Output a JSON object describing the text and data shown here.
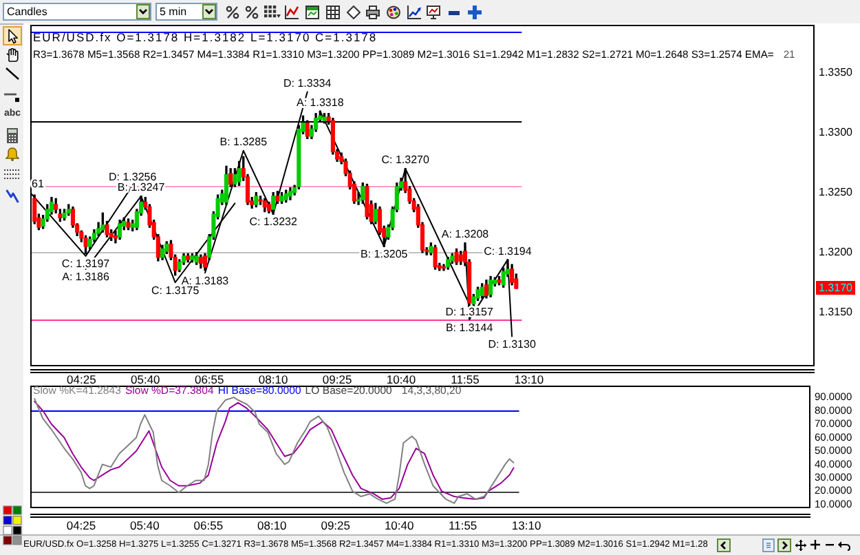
{
  "chart_data": [
    {
      "type": "candlestick",
      "title": "EUR/USD.fx O=1.3178 H=1.3182 L=1.3170 C=1.3178",
      "subtitle": "R3=1.3678 M5=1.3568 R2=1.3457 M4=1.3384 R1=1.3310 M3=1.3200 PP=1.3089 M2=1.3016 S1=1.2942 M1=1.2832 S2=1.2721 M0=1.2648 S3=1.2574 EMA=",
      "x": [
        3.5,
        3.5833,
        3.6667,
        3.75,
        3.8333,
        3.9167,
        4,
        4.0833,
        4.1667,
        4.25,
        4.3333,
        4.4167,
        4.5,
        4.5833,
        4.6667,
        4.75,
        4.8333,
        4.9167,
        5,
        5.0833,
        5.1667,
        5.25,
        5.3333,
        5.4167,
        5.5,
        5.5833,
        5.6667,
        5.75,
        5.8333,
        5.9167,
        6,
        6.0833,
        6.1667,
        6.25,
        6.3333,
        6.4167,
        6.5,
        6.5833,
        6.6667,
        6.75,
        6.8333,
        6.9167,
        7,
        7.0833,
        7.1667,
        7.25,
        7.3333,
        7.4167,
        7.5,
        7.5833,
        7.6667,
        7.75,
        7.8333,
        7.9167,
        8,
        8.0833,
        8.1667,
        8.25,
        8.3333,
        8.4167,
        8.5,
        8.5833,
        8.6667,
        8.75,
        8.8333,
        8.9167,
        9,
        9.0833,
        9.1667,
        9.25,
        9.3333,
        9.4167,
        9.5,
        9.5833,
        9.6667,
        9.75,
        9.8333,
        9.9167,
        10,
        10.0833,
        10.1667,
        10.25,
        10.3333,
        10.4167,
        10.5,
        10.5833,
        10.6667,
        10.75,
        10.8333,
        10.9167,
        11,
        11.0833,
        11.1667,
        11.25,
        11.3333,
        11.4167,
        11.5,
        11.5833,
        11.6667,
        11.75,
        11.8333,
        11.9167,
        12,
        12.0833,
        12.1667,
        12.25,
        12.3333,
        12.4167,
        12.5,
        12.5833,
        12.6667,
        12.75,
        12.8333,
        12.9167
      ],
      "ohlc": [
        [
          1.3245,
          1.3248,
          1.3224,
          1.3226
        ],
        [
          1.3229,
          1.3232,
          1.3219,
          1.3221
        ],
        [
          1.3222,
          1.3231,
          1.322,
          1.3228
        ],
        [
          1.3228,
          1.324,
          1.3226,
          1.3236
        ],
        [
          1.3234,
          1.3246,
          1.3232,
          1.3242
        ],
        [
          1.324,
          1.3245,
          1.3233,
          1.3236
        ],
        [
          1.3232,
          1.3236,
          1.3226,
          1.3229
        ],
        [
          1.3229,
          1.3236,
          1.3227,
          1.3233
        ],
        [
          1.3233,
          1.324,
          1.3231,
          1.3236
        ],
        [
          1.3236,
          1.3238,
          1.3221,
          1.3223
        ],
        [
          1.3223,
          1.3224,
          1.3214,
          1.3217
        ],
        [
          1.3217,
          1.3218,
          1.3209,
          1.3212
        ],
        [
          1.3212,
          1.3214,
          1.3199,
          1.3205
        ],
        [
          1.3205,
          1.3213,
          1.3203,
          1.3211
        ],
        [
          1.3211,
          1.3219,
          1.3209,
          1.3216
        ],
        [
          1.3216,
          1.3225,
          1.3214,
          1.322
        ],
        [
          1.3219,
          1.3233,
          1.3217,
          1.3223
        ],
        [
          1.3223,
          1.3226,
          1.3213,
          1.3215
        ],
        [
          1.3216,
          1.3219,
          1.321,
          1.3213
        ],
        [
          1.3214,
          1.3218,
          1.3208,
          1.3212
        ],
        [
          1.3213,
          1.3227,
          1.3211,
          1.3224
        ],
        [
          1.3222,
          1.3229,
          1.3219,
          1.3226
        ],
        [
          1.3225,
          1.3228,
          1.3219,
          1.3221
        ],
        [
          1.3221,
          1.3227,
          1.3218,
          1.3224
        ],
        [
          1.3221,
          1.3236,
          1.3219,
          1.3234
        ],
        [
          1.3233,
          1.3247,
          1.3231,
          1.3242
        ],
        [
          1.3242,
          1.3246,
          1.3236,
          1.3238
        ],
        [
          1.3238,
          1.324,
          1.3221,
          1.3223
        ],
        [
          1.3225,
          1.3227,
          1.3211,
          1.3213
        ],
        [
          1.3213,
          1.3215,
          1.3193,
          1.3196
        ],
        [
          1.3196,
          1.3206,
          1.3194,
          1.3203
        ],
        [
          1.3201,
          1.3209,
          1.3199,
          1.3207
        ],
        [
          1.3207,
          1.321,
          1.3194,
          1.3196
        ],
        [
          1.3196,
          1.3198,
          1.3181,
          1.3185
        ],
        [
          1.3186,
          1.3194,
          1.3184,
          1.3192
        ],
        [
          1.3192,
          1.3199,
          1.319,
          1.3197
        ],
        [
          1.3197,
          1.3199,
          1.3192,
          1.3194
        ],
        [
          1.3194,
          1.3199,
          1.3192,
          1.3197
        ],
        [
          1.3192,
          1.32,
          1.319,
          1.3197
        ],
        [
          1.3196,
          1.3198,
          1.3187,
          1.3191
        ],
        [
          1.3197,
          1.3199,
          1.3185,
          1.3188
        ],
        [
          1.3196,
          1.3215,
          1.3194,
          1.3213
        ],
        [
          1.3213,
          1.3234,
          1.3211,
          1.3232
        ],
        [
          1.323,
          1.3248,
          1.3228,
          1.3245
        ],
        [
          1.3242,
          1.3252,
          1.324,
          1.3249
        ],
        [
          1.3242,
          1.3272,
          1.324,
          1.3265
        ],
        [
          1.3266,
          1.327,
          1.3255,
          1.3257
        ],
        [
          1.3257,
          1.327,
          1.3255,
          1.3265
        ],
        [
          1.3259,
          1.3276,
          1.3256,
          1.327
        ],
        [
          1.327,
          1.328,
          1.326,
          1.3263
        ],
        [
          1.3263,
          1.3265,
          1.324,
          1.3242
        ],
        [
          1.3243,
          1.3246,
          1.3237,
          1.324
        ],
        [
          1.324,
          1.325,
          1.3238,
          1.3247
        ],
        [
          1.3244,
          1.3247,
          1.324,
          1.3243
        ],
        [
          1.3243,
          1.3245,
          1.3234,
          1.3238
        ],
        [
          1.324,
          1.3242,
          1.3233,
          1.3235
        ],
        [
          1.3236,
          1.325,
          1.3232,
          1.3247
        ],
        [
          1.3247,
          1.3251,
          1.3241,
          1.3243
        ],
        [
          1.3243,
          1.325,
          1.3241,
          1.3247
        ],
        [
          1.3244,
          1.3252,
          1.3242,
          1.3249
        ],
        [
          1.3247,
          1.3254,
          1.3244,
          1.3251
        ],
        [
          1.325,
          1.3256,
          1.3248,
          1.3254
        ],
        [
          1.3255,
          1.3306,
          1.3253,
          1.3303
        ],
        [
          1.3301,
          1.3314,
          1.3299,
          1.3308
        ],
        [
          1.3308,
          1.331,
          1.3295,
          1.3297
        ],
        [
          1.3297,
          1.3306,
          1.3295,
          1.3303
        ],
        [
          1.3303,
          1.3316,
          1.3301,
          1.3312
        ],
        [
          1.3311,
          1.3318,
          1.3309,
          1.3314
        ],
        [
          1.331,
          1.3316,
          1.3308,
          1.3313
        ],
        [
          1.3313,
          1.3316,
          1.3307,
          1.331
        ],
        [
          1.331,
          1.3312,
          1.3282,
          1.3284
        ],
        [
          1.3284,
          1.3286,
          1.3276,
          1.3278
        ],
        [
          1.328,
          1.3283,
          1.3274,
          1.3276
        ],
        [
          1.3276,
          1.3278,
          1.3264,
          1.3266
        ],
        [
          1.3266,
          1.3268,
          1.3253,
          1.3255
        ],
        [
          1.3257,
          1.3259,
          1.3241,
          1.3243
        ],
        [
          1.3243,
          1.325,
          1.324,
          1.3244
        ],
        [
          1.3244,
          1.3258,
          1.3241,
          1.3255
        ],
        [
          1.3255,
          1.3257,
          1.3228,
          1.323
        ],
        [
          1.324,
          1.3243,
          1.3224,
          1.3226
        ],
        [
          1.3226,
          1.3241,
          1.3224,
          1.3236
        ],
        [
          1.3236,
          1.3238,
          1.3215,
          1.3217
        ],
        [
          1.322,
          1.3222,
          1.3205,
          1.3213
        ],
        [
          1.3213,
          1.3223,
          1.3211,
          1.3221
        ],
        [
          1.3221,
          1.3238,
          1.3219,
          1.3236
        ],
        [
          1.3236,
          1.3258,
          1.3234,
          1.3255
        ],
        [
          1.3254,
          1.3262,
          1.3252,
          1.3259
        ],
        [
          1.3259,
          1.327,
          1.325,
          1.3252
        ],
        [
          1.3253,
          1.3255,
          1.3241,
          1.3243
        ],
        [
          1.3243,
          1.3245,
          1.3234,
          1.3236
        ],
        [
          1.3238,
          1.324,
          1.3221,
          1.3223
        ],
        [
          1.3223,
          1.3225,
          1.32,
          1.3202
        ],
        [
          1.3202,
          1.3204,
          1.3198,
          1.3201
        ],
        [
          1.32,
          1.3208,
          1.3198,
          1.3205
        ],
        [
          1.3204,
          1.3206,
          1.3186,
          1.3188
        ],
        [
          1.3189,
          1.3191,
          1.3185,
          1.3187
        ],
        [
          1.3188,
          1.319,
          1.3185,
          1.3187
        ],
        [
          1.3188,
          1.3196,
          1.3186,
          1.3194
        ],
        [
          1.3193,
          1.3199,
          1.3191,
          1.3197
        ],
        [
          1.32,
          1.3203,
          1.319,
          1.3192
        ],
        [
          1.3198,
          1.3201,
          1.319,
          1.3193
        ],
        [
          1.3201,
          1.3208,
          1.3189,
          1.3192
        ],
        [
          1.3192,
          1.3194,
          1.315,
          1.3158
        ],
        [
          1.3157,
          1.3165,
          1.3148,
          1.3163
        ],
        [
          1.3162,
          1.3171,
          1.316,
          1.3169
        ],
        [
          1.3164,
          1.3174,
          1.3162,
          1.3171
        ],
        [
          1.3173,
          1.3177,
          1.3162,
          1.3164
        ],
        [
          1.3165,
          1.318,
          1.3163,
          1.3177
        ],
        [
          1.3174,
          1.3179,
          1.3172,
          1.3177
        ],
        [
          1.3177,
          1.318,
          1.3173,
          1.3175
        ],
        [
          1.3173,
          1.3187,
          1.3171,
          1.3184
        ],
        [
          1.3182,
          1.3194,
          1.318,
          1.3186
        ],
        [
          1.3186,
          1.319,
          1.3173,
          1.3175
        ],
        [
          1.3178,
          1.3182,
          1.317,
          1.317
        ]
      ],
      "colors": [
        "#ff0000",
        "#ff0000",
        "#00cc00",
        "#00cc00",
        "#00cc00",
        "#ff0000",
        "#ff0000",
        "#00cc00",
        "#00cc00",
        "#ff0000",
        "#ff0000",
        "#ff0000",
        "#ff0000",
        "#00cc00",
        "#00cc00",
        "#00cc00",
        "#00cc00",
        "#ff0000",
        "#ff0000",
        "#ff0000",
        "#00cc00",
        "#00cc00",
        "#ff0000",
        "#00cc00",
        "#00cc00",
        "#00cc00",
        "#ff0000",
        "#ff0000",
        "#ff0000",
        "#ff0000",
        "#00cc00",
        "#00cc00",
        "#ff0000",
        "#ff0000",
        "#00cc00",
        "#00cc00",
        "#ff0000",
        "#00cc00",
        "#00cc00",
        "#ff0000",
        "#ff0000",
        "#00cc00",
        "#00cc00",
        "#00cc00",
        "#00cc00",
        "#00cc00",
        "#ff0000",
        "#00cc00",
        "#00cc00",
        "#ff0000",
        "#ff0000",
        "#ff0000",
        "#00cc00",
        "#ff0000",
        "#ff0000",
        "#ff0000",
        "#00cc00",
        "#ff0000",
        "#00cc00",
        "#00cc00",
        "#00cc00",
        "#00cc00",
        "#00cc00",
        "#00cc00",
        "#ff0000",
        "#00cc00",
        "#00cc00",
        "#00cc00",
        "#00cc00",
        "#ff0000",
        "#ff0000",
        "#ff0000",
        "#ff0000",
        "#ff0000",
        "#ff0000",
        "#ff0000",
        "#00cc00",
        "#00cc00",
        "#ff0000",
        "#ff0000",
        "#00cc00",
        "#ff0000",
        "#ff0000",
        "#00cc00",
        "#00cc00",
        "#00cc00",
        "#00cc00",
        "#ff0000",
        "#ff0000",
        "#ff0000",
        "#ff0000",
        "#ff0000",
        "#ff0000",
        "#00cc00",
        "#ff0000",
        "#ff0000",
        "#ff0000",
        "#00cc00",
        "#00cc00",
        "#ff0000",
        "#ff0000",
        "#ff0000",
        "#ff0000",
        "#00cc00",
        "#00cc00",
        "#00cc00",
        "#ff0000",
        "#00cc00",
        "#00cc00",
        "#ff0000",
        "#00cc00",
        "#00cc00",
        "#ff0000",
        "#ff0000"
      ],
      "series": [
        {
          "type": "line",
          "color": "#000000",
          "x": [
            3.4167,
            4.5,
            5.4167
          ],
          "values": [
            1.325,
            1.3197,
            1.3256
          ]
        },
        {
          "type": "line",
          "color": "#000000",
          "x": [
            4.5,
            5.5833,
            6.25,
            7.4167
          ],
          "values": [
            1.3186,
            1.3247,
            1.3175,
            1.3241
          ]
        },
        {
          "type": "line",
          "color": "#000000",
          "x": [
            6.8333,
            7.5833,
            8.1667,
            8.8333
          ],
          "values": [
            1.3183,
            1.3285,
            1.3232,
            1.3334
          ]
        },
        {
          "type": "line",
          "color": "#000000",
          "x": [
            9.0833,
            10.3333,
            10.75,
            12
          ],
          "values": [
            1.3318,
            1.3205,
            1.327,
            1.3157
          ]
        },
        {
          "type": "line",
          "color": "#000000",
          "x": [
            11.9167,
            12,
            12.75,
            12.8333
          ],
          "values": [
            1.3208,
            1.3144,
            1.3194,
            1.313
          ]
        }
      ],
      "xlim": [
        3.4167,
        18.75
      ],
      "xticks": [
        {
          "value": 4.4167,
          "label": "04:25"
        },
        {
          "value": 5.6667,
          "label": "05:40"
        },
        {
          "value": 6.9167,
          "label": "06:55"
        },
        {
          "value": 8.1667,
          "label": "08:10"
        },
        {
          "value": 9.4167,
          "label": "09:25"
        },
        {
          "value": 10.6667,
          "label": "10:40"
        },
        {
          "value": 11.9167,
          "label": "11:55"
        },
        {
          "value": 13.1667,
          "label": "13:10"
        }
      ],
      "ylim": [
        1.3105,
        1.339
      ],
      "yticks": [
        {
          "value": 1.315,
          "label": "1.3150"
        },
        {
          "value": 1.32,
          "label": "1.3200"
        },
        {
          "value": 1.325,
          "label": "1.3250"
        },
        {
          "value": 1.33,
          "label": "1.3300"
        },
        {
          "value": 1.335,
          "label": "1.3350"
        }
      ],
      "ref_lines": [
        {
          "axis": "y",
          "value": 1.3384,
          "color": "#0000ff"
        },
        {
          "axis": "y",
          "value": 1.331,
          "color": "#000000"
        },
        {
          "axis": "y",
          "value": 1.32,
          "color": "#c0c0c0"
        },
        {
          "axis": "y",
          "value": 1.3256,
          "color": "#ff99cc"
        },
        {
          "axis": "y",
          "value": 1.3144,
          "color": "#ff3399"
        }
      ],
      "annotations": [
        "21",
        {
          "text": "1.3170",
          "y": 1.317
        },
        {
          "text": "61",
          "x": 3.4167,
          "y": 1.325
        },
        {
          "text": "C: 1.3197",
          "x": 4.5,
          "y": 1.3197
        },
        {
          "text": "A: 1.3186",
          "x": 4.5,
          "y": 1.3186
        },
        {
          "text": "D: 1.3256",
          "x": 5.4167,
          "y": 1.3256
        },
        {
          "text": "B: 1.3247",
          "x": 5.5833,
          "y": 1.3247
        },
        {
          "text": "C: 1.3175",
          "x": 6.25,
          "y": 1.3175
        },
        {
          "text": "A: 1.3183",
          "x": 6.8333,
          "y": 1.3183
        },
        {
          "text": "B: 1.3285",
          "x": 7.5833,
          "y": 1.3285
        },
        {
          "text": "C: 1.3232",
          "x": 8.1667,
          "y": 1.3232
        },
        {
          "text": "D: 1.3334",
          "x": 8.8333,
          "y": 1.3334
        },
        {
          "text": "A: 1.3318",
          "x": 9.0833,
          "y": 1.3318
        },
        {
          "text": "B: 1.3205",
          "x": 10.3333,
          "y": 1.3205
        },
        {
          "text": "C: 1.3270",
          "x": 10.75,
          "y": 1.327
        },
        {
          "text": "D: 1.3157",
          "x": 12,
          "y": 1.3157
        },
        {
          "text": "A: 1.3208",
          "x": 11.9167,
          "y": 1.3208
        },
        {
          "text": "B: 1.3144",
          "x": 12,
          "y": 1.3144
        },
        {
          "text": "C: 1.3194",
          "x": 12.75,
          "y": 1.3194
        },
        {
          "text": "D: 1.3130",
          "x": 12.8333,
          "y": 1.313
        }
      ]
    },
    {
      "type": "line",
      "legend": "top left",
      "series": [
        {
          "name": "Slow %K=41.2843",
          "color": "#808080",
          "x": [
            3.5,
            3.6667,
            3.8333,
            4.0833,
            4.25,
            4.4167,
            4.5,
            4.5833,
            4.6667,
            4.8333,
            5,
            5.1667,
            5.3333,
            5.5,
            5.5833,
            5.6667,
            5.8333,
            5.9167,
            6,
            6.1667,
            6.3333,
            6.5,
            6.6667,
            6.8333,
            6.9167,
            7,
            7.0833,
            7.25,
            7.4167,
            7.5,
            7.6667,
            7.8333,
            7.9167,
            8.0833,
            8.25,
            8.4167,
            8.5,
            8.6667,
            8.8333,
            8.9167,
            9.0833,
            9.25,
            9.4167,
            9.5833,
            9.75,
            9.9167,
            10.0833,
            10.25,
            10.4167,
            10.5833,
            10.6667,
            10.75,
            10.9167,
            11,
            11.1667,
            11.3333,
            11.5833,
            11.75,
            11.8333,
            12,
            12.1667,
            12.3333,
            12.4167,
            12.5833,
            12.75,
            12.8333,
            12.9167
          ],
          "values": [
            89,
            74,
            66,
            52,
            44,
            34,
            24,
            22,
            24,
            40,
            38,
            48,
            54,
            60,
            70,
            77,
            64,
            40,
            28,
            24,
            19,
            24,
            28,
            28,
            40,
            64,
            80,
            88,
            90,
            88,
            85,
            79,
            70,
            64,
            48,
            40,
            42,
            56,
            66,
            72,
            76,
            68,
            52,
            34,
            20,
            16,
            18,
            14,
            11,
            14,
            32,
            56,
            61,
            58,
            40,
            24,
            14,
            11,
            16,
            18,
            14,
            16,
            20,
            30,
            40,
            44,
            41.2843
          ]
        },
        {
          "name": "Slow %D=37.3804",
          "color": "#990099",
          "x": [
            3.5,
            3.6667,
            3.8333,
            4.0833,
            4.25,
            4.4167,
            4.5833,
            4.6667,
            4.8333,
            5,
            5.1667,
            5.3333,
            5.5,
            5.6667,
            5.75,
            5.8333,
            6,
            6.1667,
            6.3333,
            6.5,
            6.75,
            6.9167,
            7.0833,
            7.25,
            7.3333,
            7.5,
            7.6667,
            7.8333,
            8.0833,
            8.25,
            8.4167,
            8.5833,
            8.75,
            8.9167,
            9.1667,
            9.3333,
            9.5,
            9.75,
            9.9167,
            10.1667,
            10.3333,
            10.5,
            10.6667,
            10.8333,
            11,
            11.1667,
            11.3333,
            11.5,
            11.75,
            11.9167,
            12.1667,
            12.3333,
            12.4167,
            12.6667,
            12.8333,
            12.9167
          ],
          "values": [
            87,
            80,
            70,
            60,
            48,
            38,
            30,
            28,
            32,
            36,
            38,
            44,
            50,
            60,
            65,
            56,
            38,
            28,
            24,
            24,
            26,
            32,
            56,
            72,
            82,
            86,
            82,
            76,
            66,
            56,
            46,
            48,
            56,
            66,
            72,
            66,
            52,
            32,
            22,
            18,
            14,
            15,
            22,
            40,
            52,
            48,
            32,
            20,
            16,
            15,
            14,
            15,
            20,
            26,
            32,
            37.3804
          ]
        }
      ],
      "xlim": [
        3.4167,
        18.75
      ],
      "xticks": [
        {
          "value": 4.4167,
          "label": "04:25"
        },
        {
          "value": 5.6667,
          "label": "05:40"
        },
        {
          "value": 6.9167,
          "label": "06:55"
        },
        {
          "value": 8.1667,
          "label": "08:10"
        },
        {
          "value": 9.4167,
          "label": "09:25"
        },
        {
          "value": 10.6667,
          "label": "10:40"
        },
        {
          "value": 11.9167,
          "label": "11:55"
        },
        {
          "value": 13.1667,
          "label": "13:10"
        }
      ],
      "ylim": [
        7.3,
        98.8
      ],
      "yticks": [
        {
          "value": 10,
          "label": "10.0000"
        },
        {
          "value": 20,
          "label": "20.0000"
        },
        {
          "value": 30,
          "label": "30.0000"
        },
        {
          "value": 40,
          "label": "40.0000"
        },
        {
          "value": 50,
          "label": "50.0000"
        },
        {
          "value": 60,
          "label": "60.0000"
        },
        {
          "value": 70,
          "label": "70.0000"
        },
        {
          "value": 80,
          "label": "80.0000"
        },
        {
          "value": 90,
          "label": "90.0000"
        }
      ],
      "ref_lines": [
        {
          "axis": "y",
          "value": 80,
          "label": "HI Base=80.0000",
          "color": "#0000ff"
        },
        {
          "axis": "y",
          "value": 20,
          "label": "LO Base=20.0000",
          "color": "#404040"
        }
      ],
      "annotations": [
        "14,3,3,80,20"
      ]
    },
    {
      "type": "other",
      "annotations": [
        "Candles",
        "5 min",
        "abc",
        "EUR/USD.fx O=1.3258 H=1.3275 L=1.3255 C=1.3271 R3=1.3678 M5=1.3568 R2=1.3457 M4=1.3384 R1=1.3310 M3=1.3200 PP=1.3089 M2=1.3016 S1=1.2942 M1=1.28"
      ]
    }
  ]
}
